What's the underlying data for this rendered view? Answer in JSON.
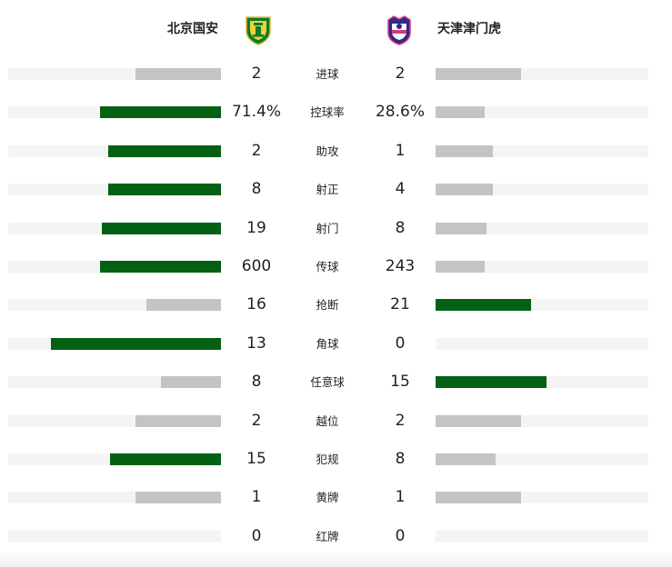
{
  "home_team": {
    "name": "北京国安",
    "logo_icon": "beijing-guoan-crest-icon"
  },
  "away_team": {
    "name": "天津津门虎",
    "logo_icon": "tianjin-jinmen-tiger-crest-icon"
  },
  "colors": {
    "leader_bar": "#046114",
    "trailing_bar": "#c4c4c4",
    "track": "#f4f4f4"
  },
  "stats": [
    {
      "label": "进球",
      "home": "2",
      "away": "2",
      "home_share": 0.4,
      "away_share": 0.4,
      "leader": "none"
    },
    {
      "label": "控球率",
      "home": "71.4%",
      "away": "28.6%",
      "home_share": 0.57,
      "away_share": 0.23,
      "leader": "home"
    },
    {
      "label": "助攻",
      "home": "2",
      "away": "1",
      "home_share": 0.53,
      "away_share": 0.27,
      "leader": "home"
    },
    {
      "label": "射正",
      "home": "8",
      "away": "4",
      "home_share": 0.53,
      "away_share": 0.27,
      "leader": "home"
    },
    {
      "label": "射门",
      "home": "19",
      "away": "8",
      "home_share": 0.56,
      "away_share": 0.24,
      "leader": "home"
    },
    {
      "label": "传球",
      "home": "600",
      "away": "243",
      "home_share": 0.57,
      "away_share": 0.23,
      "leader": "home"
    },
    {
      "label": "抢断",
      "home": "16",
      "away": "21",
      "home_share": 0.35,
      "away_share": 0.45,
      "leader": "away"
    },
    {
      "label": "角球",
      "home": "13",
      "away": "0",
      "home_share": 0.8,
      "away_share": 0.0,
      "leader": "home"
    },
    {
      "label": "任意球",
      "home": "8",
      "away": "15",
      "home_share": 0.28,
      "away_share": 0.52,
      "leader": "away"
    },
    {
      "label": "越位",
      "home": "2",
      "away": "2",
      "home_share": 0.4,
      "away_share": 0.4,
      "leader": "none"
    },
    {
      "label": "犯规",
      "home": "15",
      "away": "8",
      "home_share": 0.52,
      "away_share": 0.28,
      "leader": "home"
    },
    {
      "label": "黄牌",
      "home": "1",
      "away": "1",
      "home_share": 0.4,
      "away_share": 0.4,
      "leader": "none"
    },
    {
      "label": "红牌",
      "home": "0",
      "away": "0",
      "home_share": 0.0,
      "away_share": 0.0,
      "leader": "none"
    }
  ]
}
